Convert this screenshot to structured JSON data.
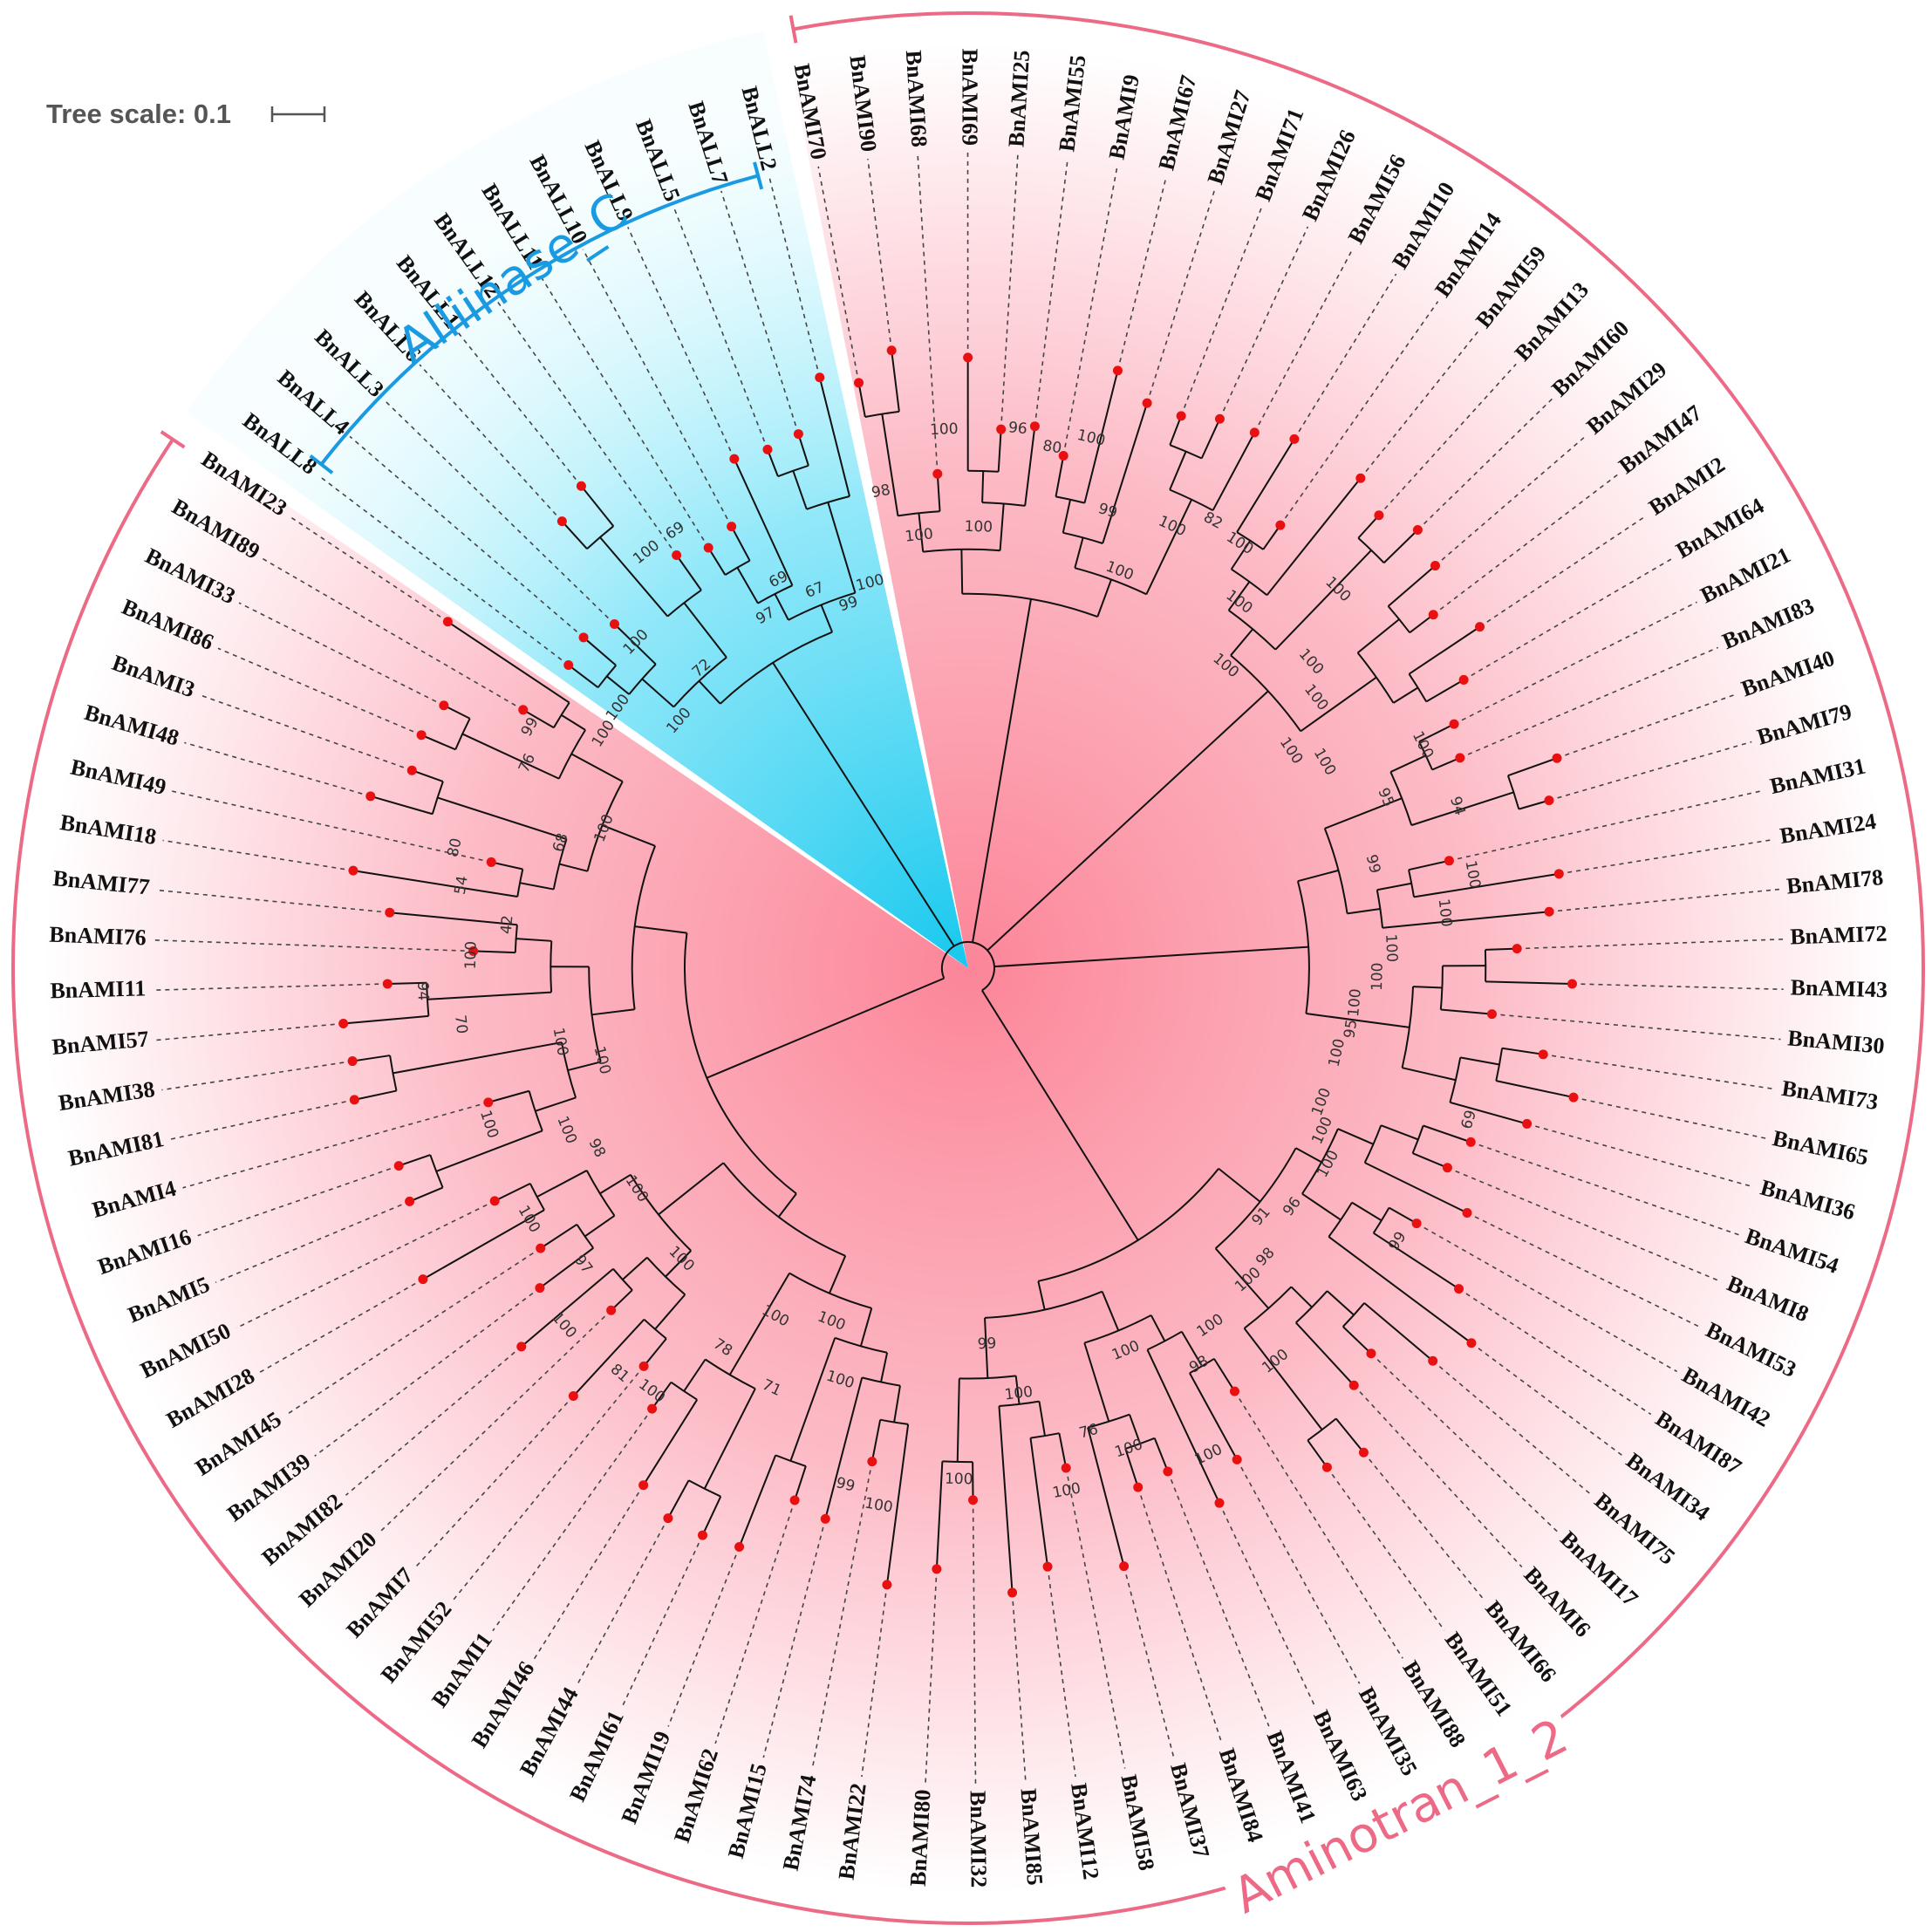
{
  "tree_scale": {
    "label": "Tree scale: 0.1"
  },
  "clades": [
    {
      "label": "Alliinase_C",
      "color": "#1a9ae0",
      "fill": "#19d0f2"
    },
    {
      "label": "Aminotran_1_2",
      "color": "#ec6a86",
      "fill": "#fb7f93"
    }
  ],
  "leaf_dot_color": "#e81010",
  "leaves_ccw_from_bottom": [
    "BnAMI22",
    "BnAMI74",
    "BnAMI15",
    "BnAMI62",
    "BnAMI19",
    "BnAMI61",
    "BnAMI44",
    "BnAMI46",
    "BnAMI1",
    "BnAMI52",
    "BnAMI7",
    "BnAMI20",
    "BnAMI82",
    "BnAMI39",
    "BnAMI45",
    "BnAMI28",
    "BnAMI50",
    "BnAMI5",
    "BnAMI16",
    "BnAMI4",
    "BnAMI81",
    "BnAMI38",
    "BnAMI57",
    "BnAMI11",
    "BnAMI76",
    "BnAMI77",
    "BnAMI18",
    "BnAMI49",
    "BnAMI48",
    "BnAMI3",
    "BnAMI86",
    "BnAMI33",
    "BnAMI89",
    "BnAMI23",
    "BnALL8",
    "BnALL4",
    "BnALL3",
    "BnALL6",
    "BnALL1",
    "BnALL12",
    "BnALL11",
    "BnALL10",
    "BnALL9",
    "BnALL5",
    "BnALL7",
    "BnALL2",
    "BnAMI70",
    "BnAMI90",
    "BnAMI68",
    "BnAMI69",
    "BnAMI25",
    "BnAMI55",
    "BnAMI9",
    "BnAMI67",
    "BnAMI27",
    "BnAMI71",
    "BnAMI26",
    "BnAMI56",
    "BnAMI10",
    "BnAMI14",
    "BnAMI59",
    "BnAMI13",
    "BnAMI60",
    "BnAMI29",
    "BnAMI47",
    "BnAMI2",
    "BnAMI64",
    "BnAMI21",
    "BnAMI83",
    "BnAMI40",
    "BnAMI79",
    "BnAMI31",
    "BnAMI24",
    "BnAMI78",
    "BnAMI72",
    "BnAMI43",
    "BnAMI30",
    "BnAMI73",
    "BnAMI65",
    "BnAMI36",
    "BnAMI54",
    "BnAMI8",
    "BnAMI53",
    "BnAMI42",
    "BnAMI87",
    "BnAMI34",
    "BnAMI75",
    "BnAMI17",
    "BnAMI6",
    "BnAMI66",
    "BnAMI51",
    "BnAMI88",
    "BnAMI35",
    "BnAMI63",
    "BnAMI41",
    "BnAMI84",
    "BnAMI37",
    "BnAMI58",
    "BnAMI12",
    "BnAMI85",
    "BnAMI32",
    "BnAMI80"
  ],
  "bootstrap_values": [
    "100",
    "99",
    "100",
    "100",
    "71",
    "100",
    "78",
    "100",
    "81",
    "100",
    "100",
    "97",
    "100",
    "100",
    "98",
    "100",
    "100",
    "100",
    "100",
    "70",
    "94",
    "100",
    "42",
    "54",
    "80",
    "68",
    "100",
    "76",
    "99",
    "100",
    "100",
    "100",
    "100",
    "72",
    "100",
    "69",
    "97",
    "69",
    "67",
    "99",
    "100",
    "98",
    "100",
    "100",
    "100",
    "96",
    "80",
    "100",
    "99",
    "100",
    "100",
    "82",
    "100",
    "100",
    "100",
    "100",
    "100",
    "100",
    "100",
    "100",
    "100",
    "95",
    "94",
    "99",
    "100",
    "100",
    "100",
    "100",
    "100",
    "95",
    "100",
    "69",
    "100",
    "100",
    "100",
    "99",
    "96",
    "91",
    "98",
    "100",
    "100",
    "100",
    "98",
    "100",
    "100",
    "100",
    "76",
    "100",
    "100",
    "99",
    "100"
  ]
}
